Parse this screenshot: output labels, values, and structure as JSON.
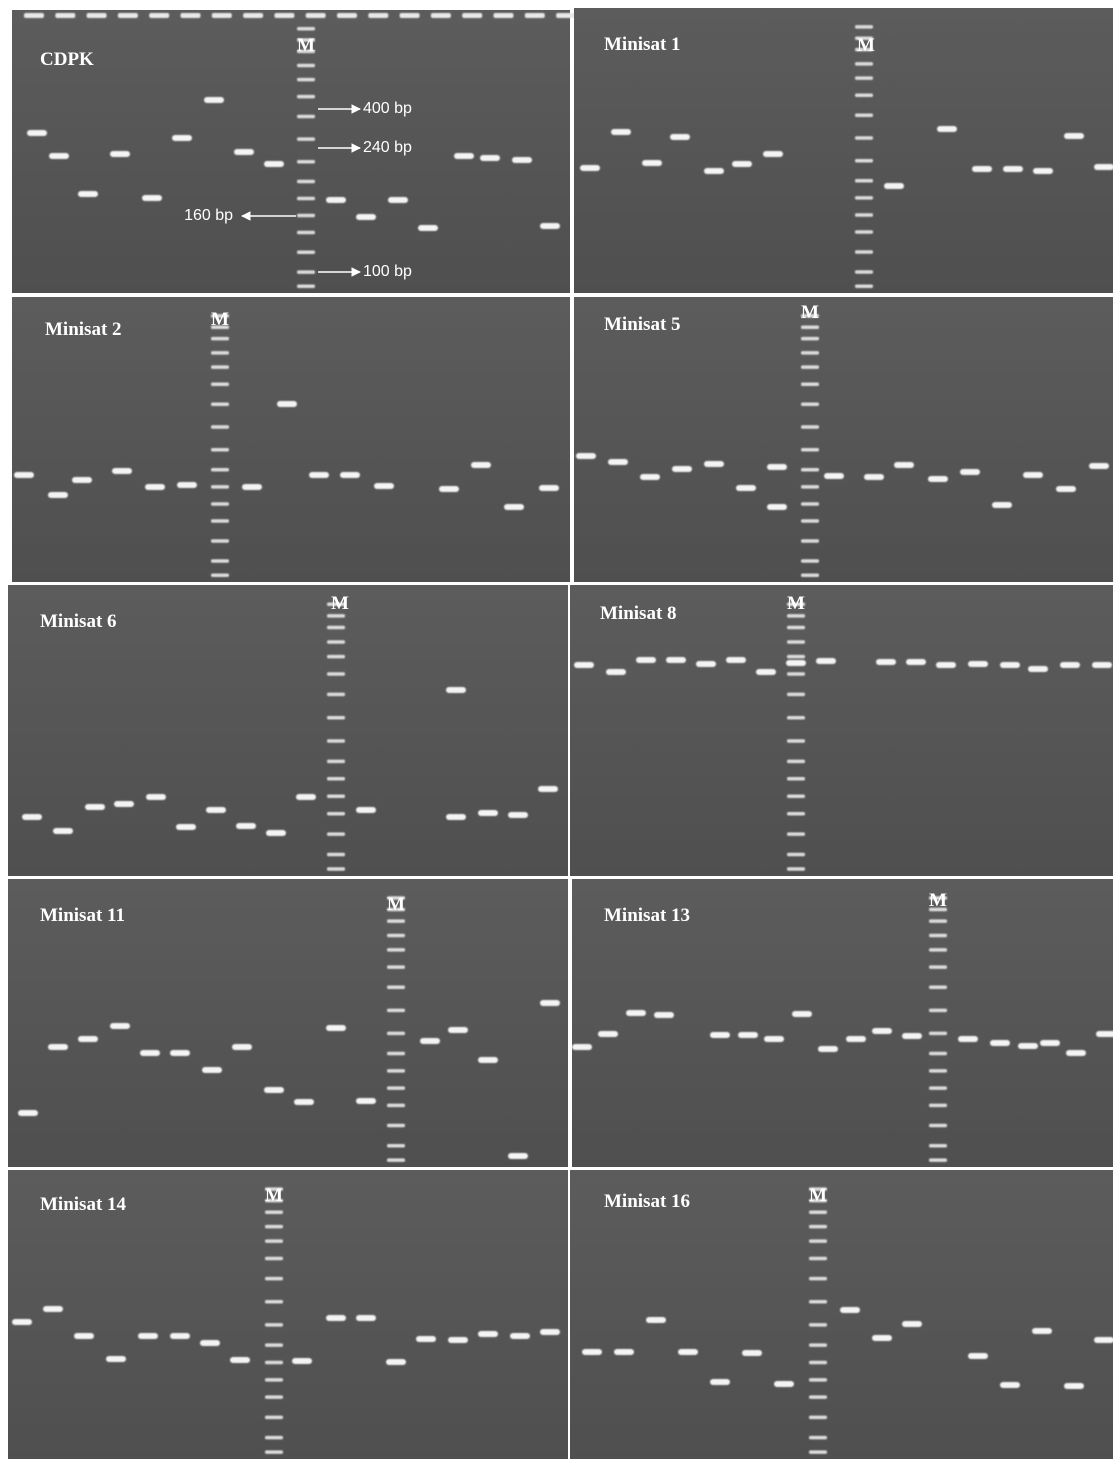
{
  "panels": [
    {
      "label": "CDPK",
      "marker": "M"
    },
    {
      "label": "Minisat 1",
      "marker": "M"
    },
    {
      "label": "Minisat 2",
      "marker": "M"
    },
    {
      "label": "Minisat 5",
      "marker": "M"
    },
    {
      "label": "Minisat 6",
      "marker": "M"
    },
    {
      "label": "Minisat 8",
      "marker": "M"
    },
    {
      "label": "Minisat 11",
      "marker": "M"
    },
    {
      "label": "Minisat 13",
      "marker": "M"
    },
    {
      "label": "Minisat 14",
      "marker": "M"
    },
    {
      "label": "Minisat 16",
      "marker": "M"
    }
  ],
  "annotations": [
    "400 bp",
    "240 bp",
    "160 bp",
    "100 bp"
  ]
}
